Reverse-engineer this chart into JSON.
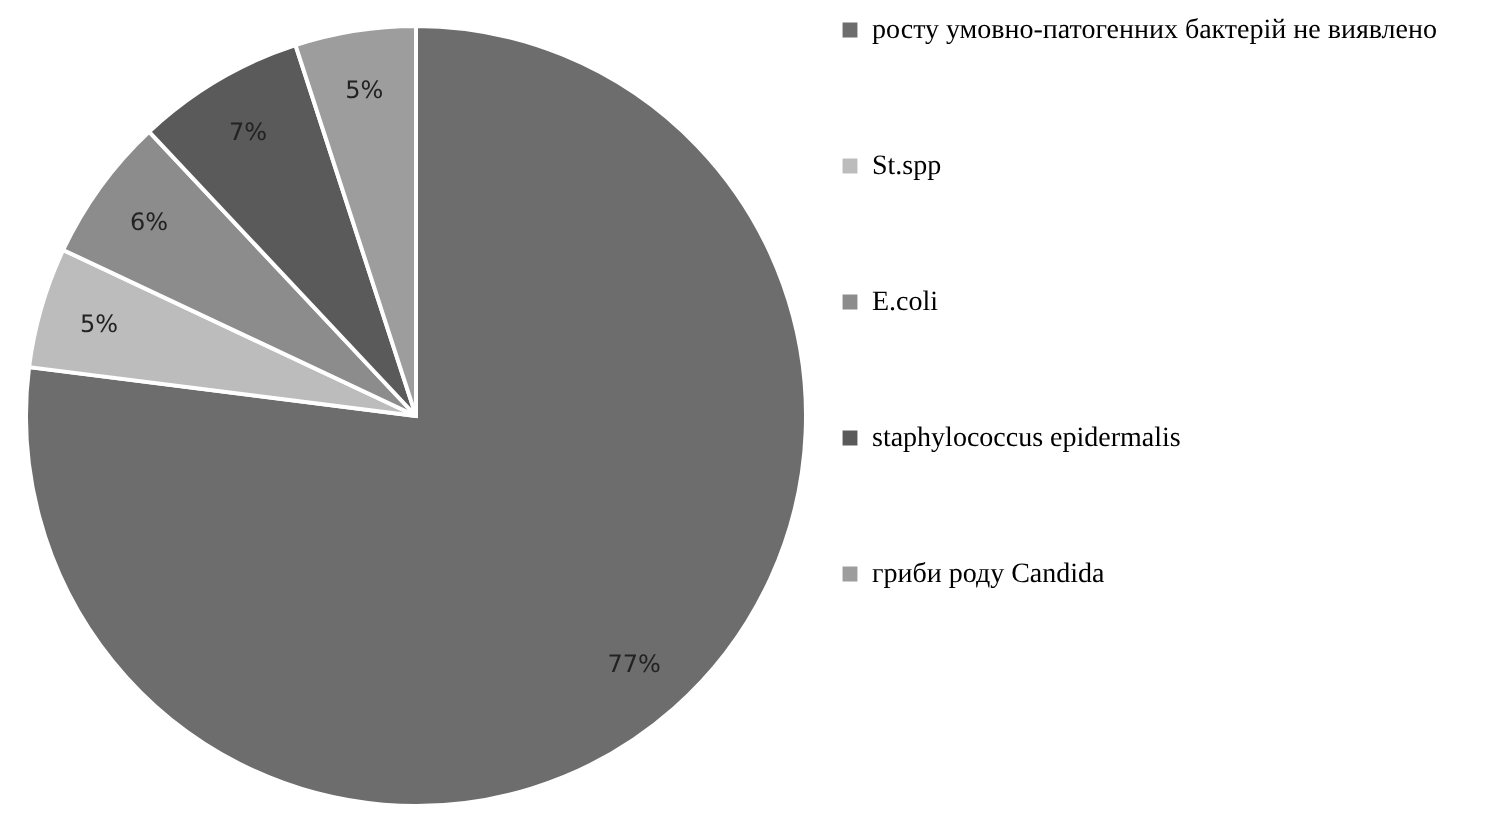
{
  "chart_data": {
    "type": "pie",
    "categories": [
      "росту умовно-патогенних бактерій не виявлено",
      "St.spp",
      "E.coli",
      "staphylococcus epidermalis",
      "гриби роду Candida"
    ],
    "values": [
      77,
      5,
      6,
      7,
      5
    ],
    "colors": [
      "#6d6d6d",
      "#bcbcbc",
      "#8c8c8c",
      "#5a5a5a",
      "#9d9d9d"
    ],
    "value_labels": [
      "77%",
      "5%",
      "6%",
      "7%",
      "5%"
    ],
    "legend": "right"
  }
}
